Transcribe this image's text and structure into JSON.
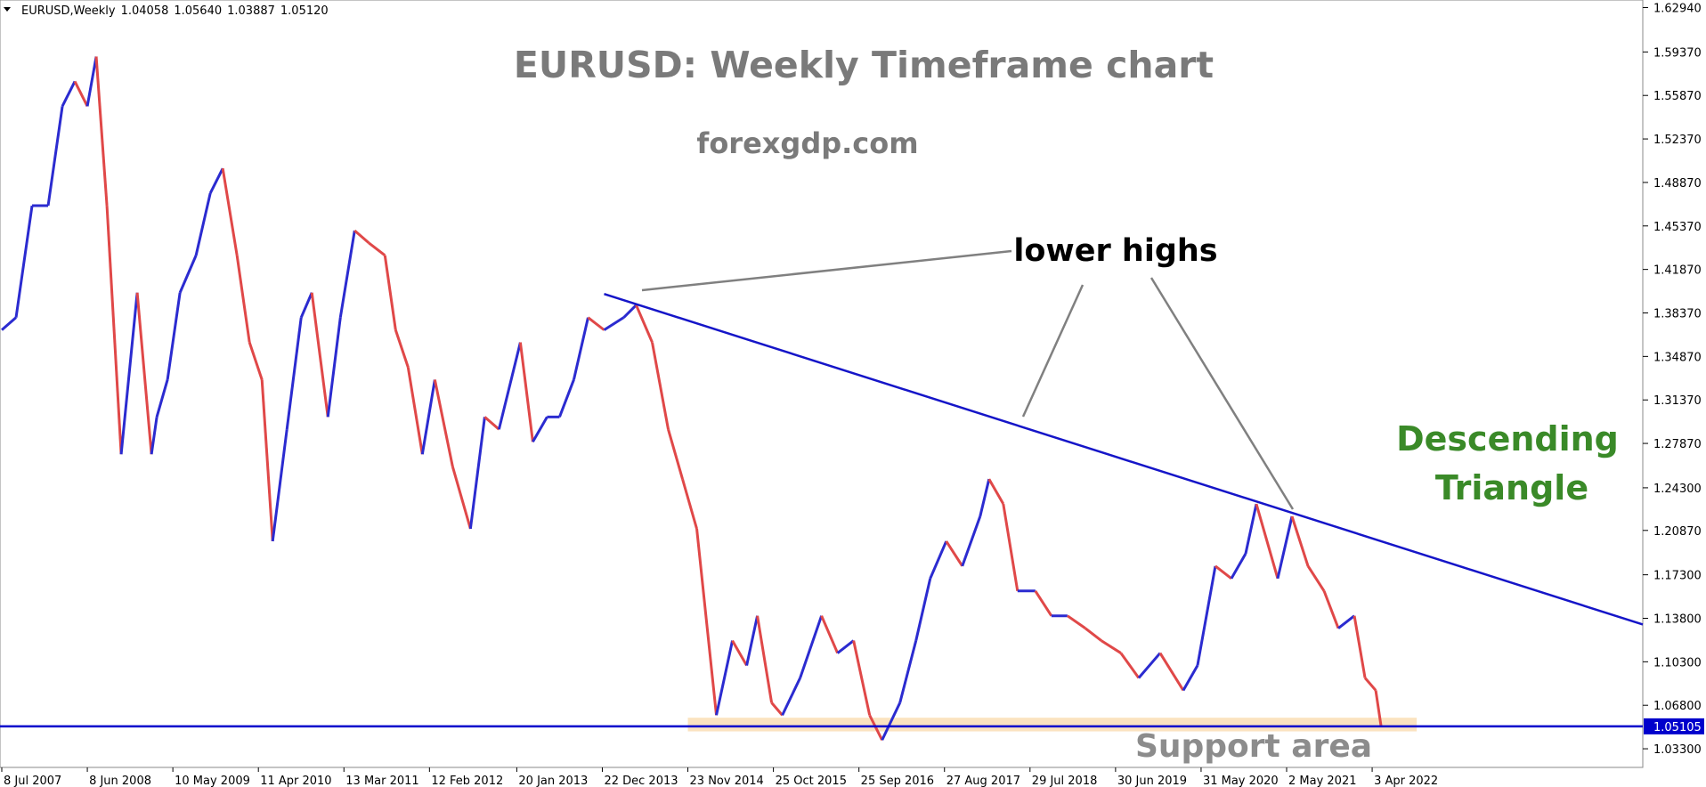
{
  "chart_data": {
    "type": "price-bars",
    "symbol": "EURUSD,Weekly",
    "ohlc": [
      {
        "value": 1.04058,
        "label": "1.04058"
      },
      {
        "value": 1.0564,
        "label": "1.05640"
      },
      {
        "value": 1.03887,
        "label": "1.03887"
      },
      {
        "value": 1.0512,
        "label": "1.05120"
      }
    ],
    "title": "EURUSD: Weekly Timeframe chart",
    "subtitle": "forexgdp.com",
    "annotations": {
      "lower_highs": "lower highs",
      "pattern_line1": "Descending",
      "pattern_line2": "Triangle",
      "support": "Support area"
    },
    "xlim": [
      "2007-07-01",
      "2025-03-01"
    ],
    "xticks": [
      {
        "value": "2007-07-08",
        "label": "8 Jul 2007"
      },
      {
        "value": "2008-06-08",
        "label": "8 Jun 2008"
      },
      {
        "value": "2009-05-10",
        "label": "10 May 2009"
      },
      {
        "value": "2010-04-11",
        "label": "11 Apr 2010"
      },
      {
        "value": "2011-03-13",
        "label": "13 Mar 2011"
      },
      {
        "value": "2012-02-12",
        "label": "12 Feb 2012"
      },
      {
        "value": "2013-01-20",
        "label": "20 Jan 2013"
      },
      {
        "value": "2013-12-22",
        "label": "22 Dec 2013"
      },
      {
        "value": "2014-11-23",
        "label": "23 Nov 2014"
      },
      {
        "value": "2015-10-25",
        "label": "25 Oct 2015"
      },
      {
        "value": "2016-09-25",
        "label": "25 Sep 2016"
      },
      {
        "value": "2017-08-27",
        "label": "27 Aug 2017"
      },
      {
        "value": "2018-07-29",
        "label": "29 Jul 2018"
      },
      {
        "value": "2019-06-30",
        "label": "30 Jun 2019"
      },
      {
        "value": "2020-05-31",
        "label": "31 May 2020"
      },
      {
        "value": "2021-05-02",
        "label": "2 May 2021"
      },
      {
        "value": "2022-04-03",
        "label": "3 Apr 2022"
      }
    ],
    "ylim": [
      1.018,
      1.6355
    ],
    "yticks": [
      {
        "value": 1.6294,
        "label": "1.62940"
      },
      {
        "value": 1.5937,
        "label": "1.59370"
      },
      {
        "value": 1.5587,
        "label": "1.55870"
      },
      {
        "value": 1.5237,
        "label": "1.52370"
      },
      {
        "value": 1.4887,
        "label": "1.48870"
      },
      {
        "value": 1.4537,
        "label": "1.45370"
      },
      {
        "value": 1.4187,
        "label": "1.41870"
      },
      {
        "value": 1.3837,
        "label": "1.38370"
      },
      {
        "value": 1.3487,
        "label": "1.34870"
      },
      {
        "value": 1.3137,
        "label": "1.31370"
      },
      {
        "value": 1.2787,
        "label": "1.27870"
      },
      {
        "value": 1.243,
        "label": "1.24300"
      },
      {
        "value": 1.2087,
        "label": "1.20870"
      },
      {
        "value": 1.173,
        "label": "1.17300"
      },
      {
        "value": 1.138,
        "label": "1.13800"
      },
      {
        "value": 1.103,
        "label": "1.10300"
      },
      {
        "value": 1.068,
        "label": "1.06800"
      },
      {
        "value": 1.033,
        "label": "1.03300"
      }
    ],
    "support_line": {
      "value": 1.05105,
      "label": "1.05105",
      "color": "#0000cc"
    },
    "support_zone": {
      "ylim": [
        1.047,
        1.058
      ],
      "xlim": [
        "2014-11-23",
        "2022-09-25"
      ],
      "color": "#fbe3c0"
    },
    "trendline": {
      "x": [
        "2013-12-29",
        "2025-03-01"
      ],
      "values": [
        1.399,
        1.133
      ],
      "color": "#1515c8"
    },
    "up_color": "#2b2bd0",
    "down_color": "#e04848",
    "x": [
      "2007-07-08",
      "2007-09-02",
      "2007-11-04",
      "2008-01-06",
      "2008-03-02",
      "2008-04-20",
      "2008-06-08",
      "2008-07-13",
      "2008-08-24",
      "2008-10-19",
      "2008-12-21",
      "2009-02-15",
      "2009-03-08",
      "2009-04-19",
      "2009-06-07",
      "2009-08-09",
      "2009-10-04",
      "2009-11-22",
      "2010-01-17",
      "2010-03-07",
      "2010-04-25",
      "2010-06-06",
      "2010-08-01",
      "2010-09-26",
      "2010-11-07",
      "2011-01-09",
      "2011-02-27",
      "2011-04-24",
      "2011-06-19",
      "2011-08-21",
      "2011-10-02",
      "2011-11-20",
      "2012-01-15",
      "2012-03-04",
      "2012-05-13",
      "2012-07-22",
      "2012-09-16",
      "2012-11-11",
      "2013-02-03",
      "2013-03-24",
      "2013-05-19",
      "2013-07-07",
      "2013-09-01",
      "2013-10-27",
      "2013-12-29",
      "2014-03-16",
      "2014-05-04",
      "2014-07-06",
      "2014-09-07",
      "2014-11-02",
      "2014-12-28",
      "2015-03-15",
      "2015-05-17",
      "2015-07-12",
      "2015-08-23",
      "2015-10-18",
      "2015-11-29",
      "2016-02-07",
      "2016-05-01",
      "2016-07-03",
      "2016-09-04",
      "2016-11-06",
      "2016-12-25",
      "2017-03-05",
      "2017-05-07",
      "2017-07-02",
      "2017-09-03",
      "2017-11-05",
      "2018-01-14",
      "2018-02-18",
      "2018-04-15",
      "2018-06-10",
      "2018-08-19",
      "2018-10-21",
      "2018-12-23",
      "2019-03-03",
      "2019-05-05",
      "2019-07-21",
      "2019-09-29",
      "2019-12-22",
      "2020-03-22",
      "2020-05-17",
      "2020-07-26",
      "2020-09-27",
      "2020-11-22",
      "2021-01-03",
      "2021-03-28",
      "2021-05-23",
      "2021-07-25",
      "2021-09-26",
      "2021-11-21",
      "2022-01-23",
      "2022-03-06",
      "2022-04-17",
      "2022-05-08"
    ],
    "values": [
      1.37,
      1.38,
      1.47,
      1.47,
      1.55,
      1.57,
      1.55,
      1.59,
      1.47,
      1.27,
      1.4,
      1.27,
      1.3,
      1.33,
      1.4,
      1.43,
      1.48,
      1.5,
      1.43,
      1.36,
      1.33,
      1.2,
      1.29,
      1.38,
      1.4,
      1.3,
      1.38,
      1.45,
      1.44,
      1.43,
      1.37,
      1.34,
      1.27,
      1.33,
      1.26,
      1.21,
      1.3,
      1.29,
      1.36,
      1.28,
      1.3,
      1.3,
      1.33,
      1.38,
      1.37,
      1.38,
      1.39,
      1.36,
      1.29,
      1.25,
      1.21,
      1.06,
      1.12,
      1.1,
      1.14,
      1.07,
      1.06,
      1.09,
      1.14,
      1.11,
      1.12,
      1.06,
      1.04,
      1.07,
      1.12,
      1.17,
      1.2,
      1.18,
      1.22,
      1.25,
      1.23,
      1.16,
      1.16,
      1.14,
      1.14,
      1.13,
      1.12,
      1.11,
      1.09,
      1.11,
      1.08,
      1.1,
      1.18,
      1.17,
      1.19,
      1.23,
      1.17,
      1.22,
      1.18,
      1.16,
      1.13,
      1.14,
      1.09,
      1.08,
      1.0512
    ]
  }
}
